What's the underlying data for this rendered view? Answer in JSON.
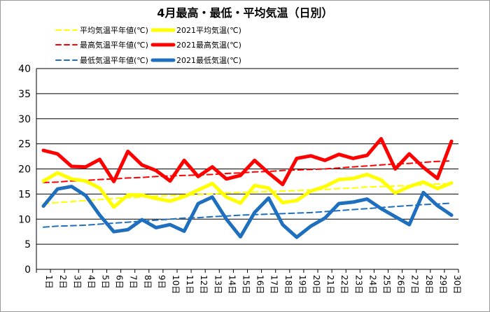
{
  "chart_data": {
    "type": "line",
    "title": "4月最高・最低・平均気温（日別）",
    "categories": [
      "1日",
      "2日",
      "3日",
      "4日",
      "5日",
      "6日",
      "7日",
      "8日",
      "9日",
      "10日",
      "11日",
      "12日",
      "13日",
      "14日",
      "15日",
      "16日",
      "17日",
      "18日",
      "19日",
      "20日",
      "21日",
      "22日",
      "23日",
      "24日",
      "25日",
      "26日",
      "27日",
      "28日",
      "29日",
      "30日"
    ],
    "ylim": [
      0,
      40
    ],
    "yticks": [
      0,
      5,
      10,
      15,
      20,
      25,
      30,
      35,
      40
    ],
    "grid": true,
    "legend_position": "top",
    "series": [
      {
        "name": "平均気温平年値(℃)",
        "style": "dashed",
        "color": "#ffff00",
        "values": [
          13.1,
          13.3,
          13.5,
          13.7,
          13.9,
          14.1,
          14.3,
          14.4,
          14.6,
          14.7,
          14.8,
          14.9,
          15.0,
          15.2,
          15.3,
          15.4,
          15.5,
          15.6,
          15.7,
          15.8,
          15.9,
          16.1,
          16.2,
          16.4,
          16.5,
          16.6,
          16.7,
          16.9,
          17.0,
          17.1
        ]
      },
      {
        "name": "2021平均気温(℃)",
        "style": "solid",
        "color": "#ffff00",
        "values": [
          17.6,
          19.2,
          18.0,
          17.6,
          16.2,
          12.4,
          14.8,
          14.8,
          14.1,
          13.6,
          14.5,
          15.8,
          17.1,
          14.4,
          13.2,
          16.7,
          16.2,
          13.3,
          13.7,
          15.6,
          16.5,
          17.9,
          18.1,
          18.9,
          17.8,
          15.2,
          16.5,
          17.4,
          16.1,
          17.2
        ]
      },
      {
        "name": "最高気温平年値(℃)",
        "style": "dashed",
        "color": "#ff0000",
        "values": [
          17.3,
          17.4,
          17.6,
          17.7,
          17.9,
          18.0,
          18.2,
          18.3,
          18.5,
          18.6,
          18.7,
          18.8,
          18.9,
          19.1,
          19.2,
          19.4,
          19.5,
          19.7,
          19.8,
          19.9,
          20.0,
          20.2,
          20.4,
          20.6,
          20.8,
          21.0,
          21.1,
          21.3,
          21.5,
          21.6
        ]
      },
      {
        "name": "2021最高気温(℃)",
        "style": "solid",
        "color": "#ff0000",
        "values": [
          23.7,
          23.0,
          20.5,
          20.4,
          21.9,
          17.5,
          23.5,
          20.8,
          19.7,
          17.6,
          21.7,
          18.5,
          20.4,
          18.0,
          18.7,
          21.7,
          19.2,
          16.9,
          22.1,
          22.6,
          21.7,
          22.9,
          22.1,
          22.7,
          26.0,
          20.0,
          23.0,
          20.3,
          18.1,
          25.5
        ]
      },
      {
        "name": "最低気温平年値(℃)",
        "style": "dashed",
        "color": "#1f6fbf",
        "values": [
          8.4,
          8.6,
          8.7,
          8.8,
          9.0,
          9.2,
          9.4,
          9.6,
          9.8,
          10.0,
          10.2,
          10.3,
          10.5,
          10.6,
          10.8,
          10.9,
          11.0,
          11.1,
          11.2,
          11.3,
          11.5,
          11.7,
          11.9,
          12.1,
          12.3,
          12.5,
          12.7,
          12.9,
          13.0,
          13.2
        ]
      },
      {
        "name": "2021最低気温(℃)",
        "style": "solid",
        "color": "#1f6fbf",
        "values": [
          12.6,
          16.0,
          16.5,
          14.7,
          10.8,
          7.5,
          7.9,
          9.9,
          8.3,
          8.9,
          7.6,
          13.1,
          14.4,
          10.0,
          6.5,
          11.3,
          14.2,
          8.9,
          6.4,
          8.6,
          10.2,
          13.1,
          13.4,
          14.0,
          12.1,
          10.5,
          8.9,
          15.3,
          12.7,
          10.8
        ]
      }
    ]
  }
}
